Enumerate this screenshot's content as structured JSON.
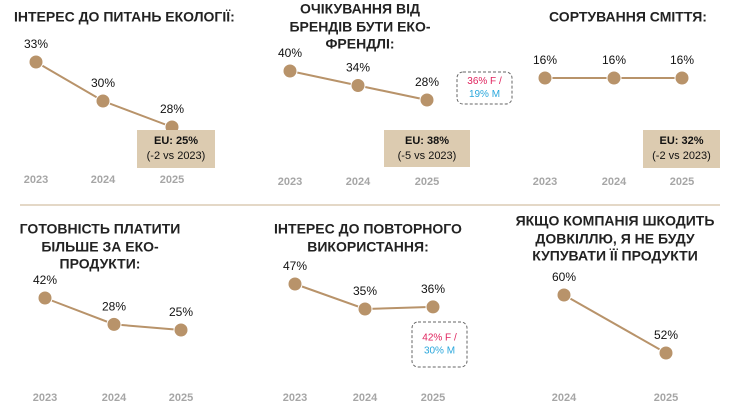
{
  "chart_data": [
    {
      "type": "line",
      "title": [
        "ІНТЕРЕС ДО ПИТАНЬ ЕКОЛОГІЇ:"
      ],
      "categories": [
        "2023",
        "2024",
        "2025"
      ],
      "values": [
        33,
        30,
        28
      ],
      "value_labels": [
        "33%",
        "30%",
        "28%"
      ],
      "color": "#b8936a",
      "annotation": [
        "EU: 25%",
        "(-2 vs 2023)"
      ]
    },
    {
      "type": "line",
      "title": [
        "ОЧІКУВАННЯ ВІД",
        "БРЕНДІВ БУТИ ЕКО-",
        "ФРЕНДЛІ:"
      ],
      "categories": [
        "2023",
        "2024",
        "2025"
      ],
      "values": [
        40,
        34,
        28
      ],
      "value_labels": [
        "40%",
        "34%",
        "28%"
      ],
      "color": "#b8936a",
      "annotation": [
        "EU: 38%",
        "(-5 vs 2023)"
      ],
      "callout": [
        {
          "text": "36% F /",
          "color": "#e0245e"
        },
        {
          "text": "19% M",
          "color": "#2aa7dc"
        }
      ]
    },
    {
      "type": "line",
      "title": [
        "СОРТУВАННЯ СМІТТЯ:"
      ],
      "categories": [
        "2023",
        "2024",
        "2025"
      ],
      "values": [
        16,
        16,
        16
      ],
      "value_labels": [
        "16%",
        "16%",
        "16%"
      ],
      "color": "#b8936a",
      "annotation": [
        "EU: 32%",
        "(-2 vs 2023)"
      ]
    },
    {
      "type": "line",
      "title": [
        "ГОТОВНІСТЬ ПЛАТИТИ",
        "БІЛЬШЕ ЗА ЕКО-",
        "ПРОДУКТИ:"
      ],
      "categories": [
        "2023",
        "2024",
        "2025"
      ],
      "values": [
        42,
        28,
        25
      ],
      "value_labels": [
        "42%",
        "28%",
        "25%"
      ],
      "color": "#b8936a"
    },
    {
      "type": "line",
      "title": [
        "ІНТЕРЕС ДО ПОВТОРНОГО",
        "ВИКОРИСТАННЯ:"
      ],
      "categories": [
        "2023",
        "2024",
        "2025"
      ],
      "values": [
        47,
        35,
        36
      ],
      "value_labels": [
        "47%",
        "35%",
        "36%"
      ],
      "color": "#b8936a",
      "callout": [
        {
          "text": "42% F /",
          "color": "#e0245e"
        },
        {
          "text": "30% M",
          "color": "#2aa7dc"
        }
      ]
    },
    {
      "type": "line",
      "title": [
        "ЯКЩО КОМПАНІЯ ШКОДИТЬ",
        "ДОВКІЛЛЮ, Я НЕ БУДУ",
        "КУПУВАТИ ЇЇ ПРОДУКТИ"
      ],
      "categories": [
        "2024",
        "2025"
      ],
      "values": [
        60,
        52
      ],
      "value_labels": [
        "60%",
        "52%"
      ],
      "color": "#b8936a"
    }
  ]
}
